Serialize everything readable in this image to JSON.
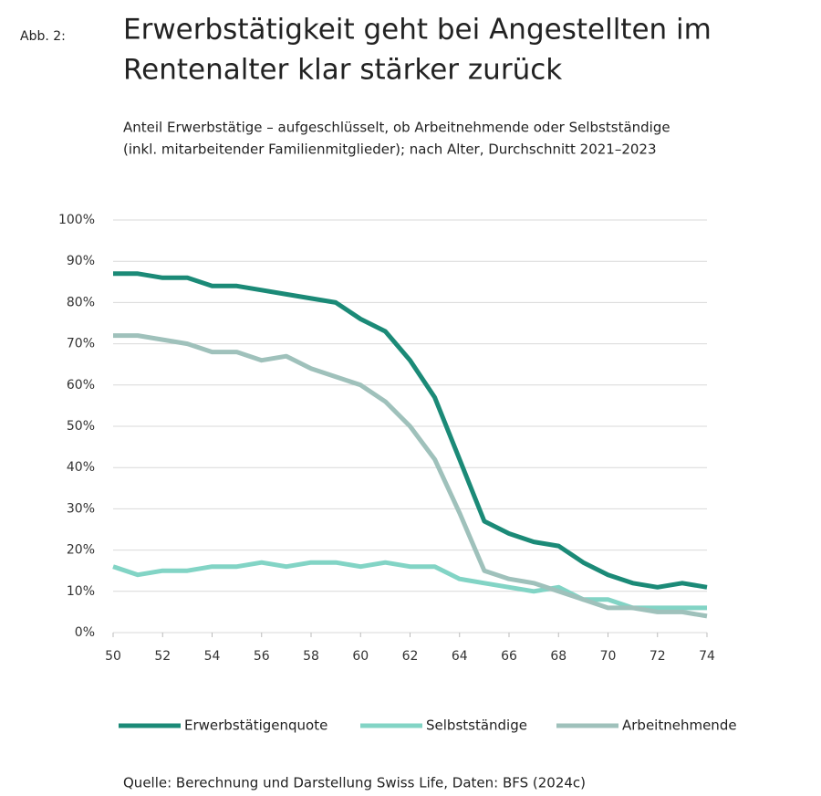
{
  "chart_data": {
    "type": "line",
    "figure_label": "Abb. 2:",
    "title": [
      "Erwerbstätigkeit geht bei Angestellten im",
      "Rentenalter klar stärker zurück"
    ],
    "subtitle": [
      "Anteil Erwerbstätige – aufgeschlüsselt, ob Arbeitnehmende oder Selbstständige",
      "(inkl. mitarbeitender Familienmitglieder); nach Alter, Durchschnitt 2021–2023"
    ],
    "source": "Quelle: Berechnung und Darstellung Swiss Life, Daten: BFS (2024c)",
    "x": [
      50,
      51,
      52,
      53,
      54,
      55,
      56,
      57,
      58,
      59,
      60,
      61,
      62,
      63,
      64,
      65,
      66,
      67,
      68,
      69,
      70,
      71,
      72,
      73,
      74
    ],
    "series": [
      {
        "name": "Erwerbstätigenquote",
        "color": "#1b8a77",
        "values": [
          87,
          87,
          86,
          86,
          84,
          84,
          83,
          82,
          81,
          80,
          76,
          73,
          66,
          57,
          42,
          27,
          24,
          22,
          21,
          17,
          14,
          12,
          11,
          12,
          11
        ]
      },
      {
        "name": "Selbstständige",
        "color": "#82d4c5",
        "values": [
          16,
          14,
          15,
          15,
          16,
          16,
          17,
          16,
          17,
          17,
          16,
          17,
          16,
          16,
          13,
          12,
          11,
          10,
          11,
          8,
          8,
          6,
          6,
          6,
          6
        ]
      },
      {
        "name": "Arbeitnehmende",
        "color": "#9fc1bb",
        "values": [
          72,
          72,
          71,
          70,
          68,
          68,
          66,
          67,
          64,
          62,
          60,
          56,
          50,
          42,
          29,
          15,
          13,
          12,
          10,
          8,
          6,
          6,
          5,
          5,
          4
        ]
      }
    ],
    "xlim": [
      50,
      74
    ],
    "xticks": [
      50,
      52,
      54,
      56,
      58,
      60,
      62,
      64,
      66,
      68,
      70,
      72,
      74
    ],
    "ylim": [
      0,
      100
    ],
    "yticks": [
      {
        "value": 0,
        "label": "0%"
      },
      {
        "value": 10,
        "label": "10%"
      },
      {
        "value": 20,
        "label": "20%"
      },
      {
        "value": 30,
        "label": "30%"
      },
      {
        "value": 40,
        "label": "40%"
      },
      {
        "value": 50,
        "label": "50%"
      },
      {
        "value": 60,
        "label": "60%"
      },
      {
        "value": 70,
        "label": "70%"
      },
      {
        "value": 80,
        "label": "80%"
      },
      {
        "value": 90,
        "label": "90%"
      },
      {
        "value": 100,
        "label": "100%"
      }
    ],
    "grid": true,
    "legend": "bottom"
  }
}
